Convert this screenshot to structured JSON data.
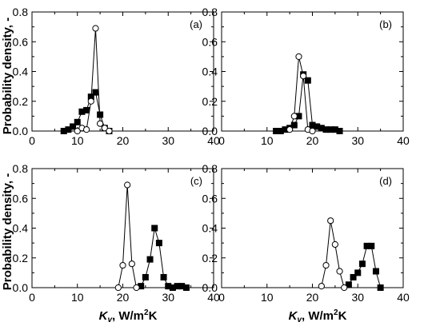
{
  "figure": {
    "ylabel": "Probability density, -",
    "xlabel_main": "K",
    "xlabel_sub": "v",
    "xlabel_units_pre": ", W/m",
    "xlabel_units_sup": "2",
    "xlabel_units_post": "K"
  },
  "chart_data": [
    {
      "type": "line",
      "panel": "(a)",
      "xlim": [
        0,
        40
      ],
      "ylim": [
        0,
        0.8
      ],
      "xticks": [
        0,
        10,
        20,
        30,
        40
      ],
      "yticks": [
        0.0,
        0.2,
        0.4,
        0.6,
        0.8
      ],
      "grid": false,
      "series": [
        {
          "marker": "square-filled",
          "x": [
            7,
            8,
            9,
            10,
            11,
            12,
            13,
            14,
            15,
            16,
            17
          ],
          "y": [
            0.0,
            0.01,
            0.03,
            0.06,
            0.13,
            0.14,
            0.23,
            0.26,
            0.11,
            0.02,
            0.0
          ]
        },
        {
          "marker": "circle-open",
          "x": [
            10,
            11,
            12,
            13,
            14,
            15,
            16,
            17
          ],
          "y": [
            0.0,
            0.02,
            0.01,
            0.2,
            0.69,
            0.05,
            0.02,
            0.0
          ]
        }
      ]
    },
    {
      "type": "line",
      "panel": "(b)",
      "xlim": [
        0,
        40
      ],
      "ylim": [
        0,
        0.8
      ],
      "xticks": [
        0,
        10,
        20,
        30,
        40
      ],
      "yticks": [
        0.0,
        0.2,
        0.4,
        0.6,
        0.8
      ],
      "grid": false,
      "series": [
        {
          "marker": "square-filled",
          "x": [
            12,
            13,
            14,
            15,
            16,
            17,
            18,
            19,
            20,
            21,
            22,
            23,
            24,
            25,
            26
          ],
          "y": [
            0.0,
            0.0,
            0.01,
            0.02,
            0.04,
            0.1,
            0.38,
            0.34,
            0.04,
            0.03,
            0.02,
            0.01,
            0.01,
            0.01,
            0.0
          ]
        },
        {
          "marker": "circle-open",
          "x": [
            15,
            16,
            17,
            18,
            19,
            20
          ],
          "y": [
            0.01,
            0.1,
            0.5,
            0.37,
            0.01,
            0.0
          ]
        }
      ]
    },
    {
      "type": "line",
      "panel": "(c)",
      "xlim": [
        0,
        40
      ],
      "ylim": [
        0,
        0.8
      ],
      "xticks": [
        0,
        10,
        20,
        30,
        40
      ],
      "yticks": [
        0.0,
        0.2,
        0.4,
        0.6,
        0.8
      ],
      "grid": false,
      "series": [
        {
          "marker": "square-filled",
          "x": [
            24,
            25,
            26,
            27,
            28,
            29,
            30,
            31,
            32,
            33,
            34
          ],
          "y": [
            0.01,
            0.07,
            0.19,
            0.4,
            0.3,
            0.07,
            0.01,
            0.0,
            0.01,
            0.01,
            0.0
          ]
        },
        {
          "marker": "circle-open",
          "x": [
            19,
            20,
            21,
            22,
            23
          ],
          "y": [
            0.0,
            0.15,
            0.69,
            0.16,
            0.0
          ]
        }
      ]
    },
    {
      "type": "line",
      "panel": "(d)",
      "xlim": [
        0,
        40
      ],
      "ylim": [
        0,
        0.8
      ],
      "xticks": [
        0,
        10,
        20,
        30,
        40
      ],
      "yticks": [
        0.0,
        0.2,
        0.4,
        0.6,
        0.8
      ],
      "grid": false,
      "series": [
        {
          "marker": "square-filled",
          "x": [
            28,
            29,
            30,
            31,
            32,
            33,
            34,
            35
          ],
          "y": [
            0.02,
            0.07,
            0.1,
            0.16,
            0.28,
            0.28,
            0.11,
            0.0
          ]
        },
        {
          "marker": "circle-open",
          "x": [
            22,
            23,
            24,
            25,
            26,
            27
          ],
          "y": [
            0.01,
            0.15,
            0.45,
            0.29,
            0.11,
            0.0
          ]
        }
      ]
    }
  ]
}
